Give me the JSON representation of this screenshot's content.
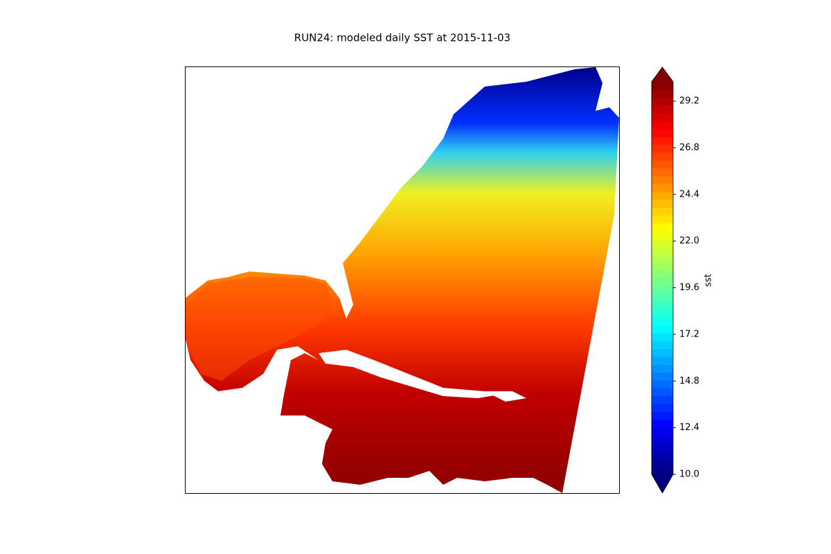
{
  "chart_data": {
    "type": "map",
    "title": "RUN24: modeled daily SST at 2015-11-03",
    "colorbar_label": "sst",
    "colormap": "jet",
    "clim": [
      10,
      30.2
    ],
    "cticks": [
      {
        "value": 10,
        "label": "10.0"
      },
      12.4,
      14.8,
      17.2,
      19.6,
      {
        "value": 22,
        "label": "22.0"
      },
      24.4,
      26.8,
      29.2
    ]
  }
}
